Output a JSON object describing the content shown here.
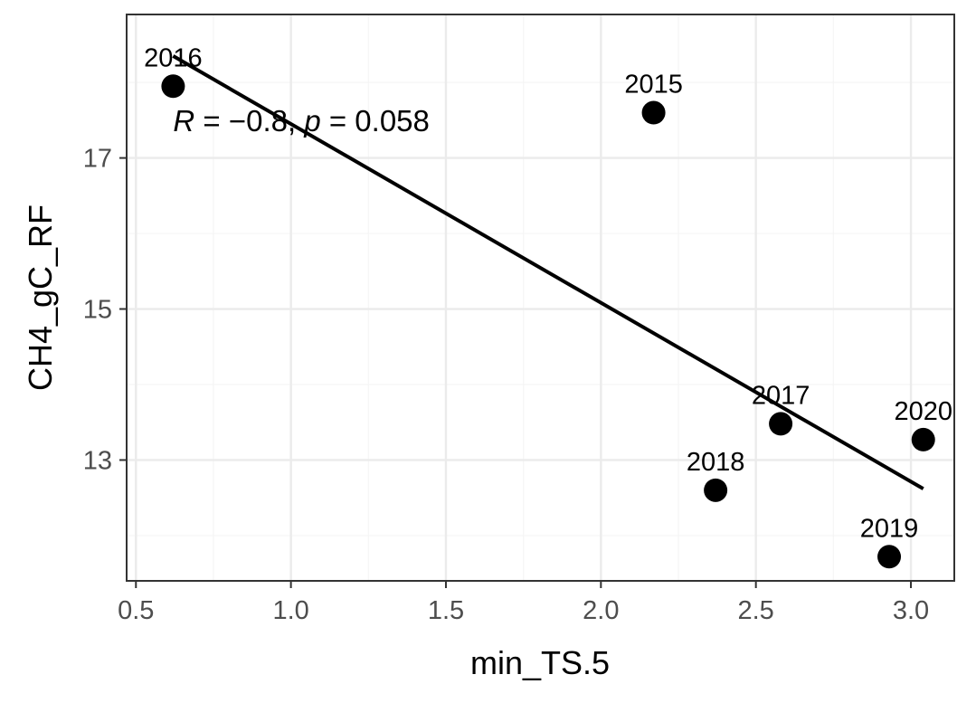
{
  "chart_data": {
    "type": "scatter",
    "xlabel": "min_TS.5",
    "ylabel": "CH4_gC_RF",
    "xlim": [
      0.47,
      3.14
    ],
    "ylim": [
      11.4,
      18.9
    ],
    "x_ticks": [
      0.5,
      1.0,
      1.5,
      2.0,
      2.5,
      3.0
    ],
    "x_tick_labels": [
      "0.5",
      "1.0",
      "1.5",
      "2.0",
      "2.5",
      "3.0"
    ],
    "y_ticks": [
      13,
      15,
      17
    ],
    "y_tick_labels": [
      "13",
      "15",
      "17"
    ],
    "grid": true,
    "points": [
      {
        "label": "2016",
        "x": 0.62,
        "y": 17.95
      },
      {
        "label": "2015",
        "x": 2.17,
        "y": 17.6
      },
      {
        "label": "2017",
        "x": 2.58,
        "y": 13.48
      },
      {
        "label": "2018",
        "x": 2.37,
        "y": 12.6
      },
      {
        "label": "2020",
        "x": 3.04,
        "y": 13.27
      },
      {
        "label": "2019",
        "x": 2.93,
        "y": 11.72
      }
    ],
    "fit_line": {
      "x": [
        0.62,
        3.04
      ],
      "y": [
        18.35,
        12.62
      ]
    },
    "annotation": {
      "r_symbol": "R",
      "r_value": " = −0.8, ",
      "p_symbol": "p",
      "p_value": " = 0.058",
      "x": 0.62,
      "y": 17.5
    },
    "colors": {
      "points": "#000000",
      "line": "#000000",
      "grid_major": "#ebebeb",
      "grid_minor": "#f5f5f5",
      "panel_border": "#333333"
    }
  }
}
